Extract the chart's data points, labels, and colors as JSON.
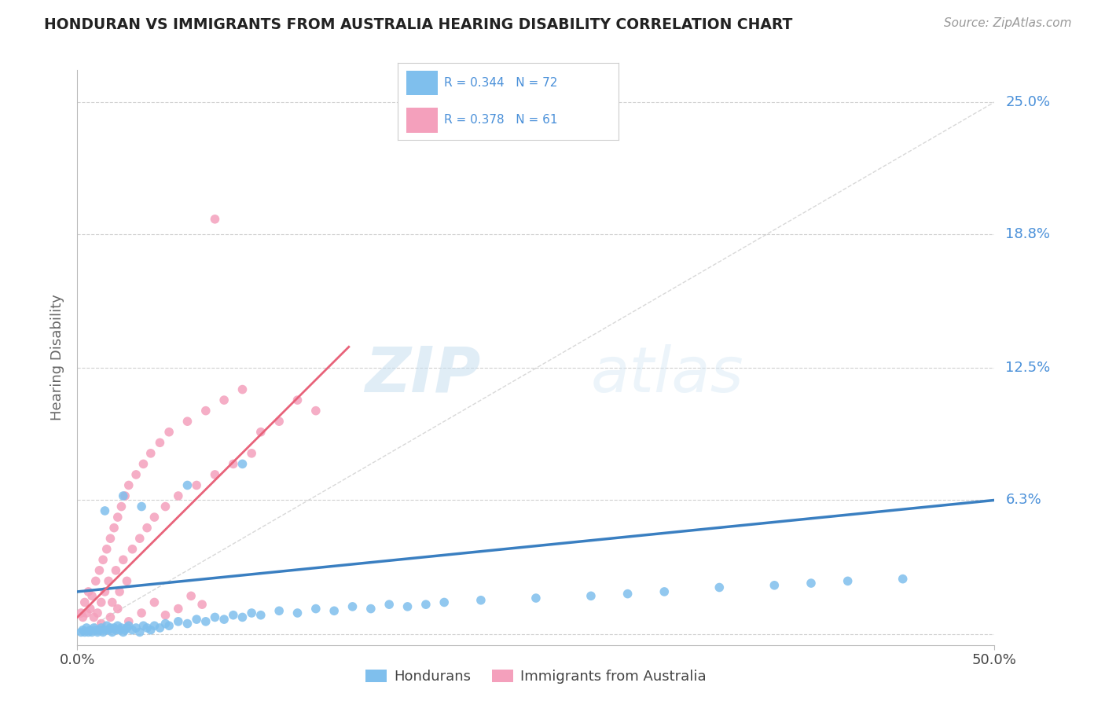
{
  "title": "HONDURAN VS IMMIGRANTS FROM AUSTRALIA HEARING DISABILITY CORRELATION CHART",
  "source": "Source: ZipAtlas.com",
  "ylabel": "Hearing Disability",
  "xlim": [
    0.0,
    0.5
  ],
  "ylim": [
    -0.005,
    0.265
  ],
  "ytick_labels": [
    "25.0%",
    "18.8%",
    "12.5%",
    "6.3%"
  ],
  "ytick_values": [
    0.25,
    0.188,
    0.125,
    0.063
  ],
  "blue_color": "#7fbfed",
  "pink_color": "#f4a0bc",
  "blue_line_color": "#3a7fc1",
  "pink_line_color": "#e8637a",
  "diag_color": "#c8c8c8",
  "grid_color": "#d0d0d0",
  "background_color": "#ffffff",
  "title_color": "#222222",
  "axis_label_color": "#666666",
  "right_label_color": "#4a90d9",
  "source_color": "#999999",
  "watermark_zip": "ZIP",
  "watermark_atlas": "atlas",
  "blue_scatter_x": [
    0.002,
    0.003,
    0.004,
    0.005,
    0.006,
    0.007,
    0.008,
    0.009,
    0.01,
    0.011,
    0.012,
    0.013,
    0.014,
    0.015,
    0.016,
    0.017,
    0.018,
    0.019,
    0.02,
    0.021,
    0.022,
    0.023,
    0.024,
    0.025,
    0.026,
    0.027,
    0.028,
    0.03,
    0.032,
    0.034,
    0.036,
    0.038,
    0.04,
    0.042,
    0.045,
    0.048,
    0.05,
    0.055,
    0.06,
    0.065,
    0.07,
    0.075,
    0.08,
    0.085,
    0.09,
    0.095,
    0.1,
    0.11,
    0.12,
    0.13,
    0.14,
    0.15,
    0.16,
    0.17,
    0.18,
    0.19,
    0.2,
    0.22,
    0.25,
    0.28,
    0.3,
    0.32,
    0.35,
    0.38,
    0.4,
    0.42,
    0.45,
    0.015,
    0.025,
    0.035,
    0.06,
    0.09
  ],
  "blue_scatter_y": [
    0.001,
    0.002,
    0.001,
    0.003,
    0.001,
    0.002,
    0.001,
    0.003,
    0.002,
    0.001,
    0.002,
    0.003,
    0.001,
    0.002,
    0.004,
    0.002,
    0.003,
    0.001,
    0.003,
    0.002,
    0.004,
    0.002,
    0.003,
    0.001,
    0.002,
    0.003,
    0.004,
    0.002,
    0.003,
    0.001,
    0.004,
    0.003,
    0.002,
    0.004,
    0.003,
    0.005,
    0.004,
    0.006,
    0.005,
    0.007,
    0.006,
    0.008,
    0.007,
    0.009,
    0.008,
    0.01,
    0.009,
    0.011,
    0.01,
    0.012,
    0.011,
    0.013,
    0.012,
    0.014,
    0.013,
    0.014,
    0.015,
    0.016,
    0.017,
    0.018,
    0.019,
    0.02,
    0.022,
    0.023,
    0.024,
    0.025,
    0.026,
    0.058,
    0.065,
    0.06,
    0.07,
    0.08
  ],
  "pink_scatter_x": [
    0.002,
    0.003,
    0.004,
    0.005,
    0.006,
    0.007,
    0.008,
    0.009,
    0.01,
    0.011,
    0.012,
    0.013,
    0.014,
    0.015,
    0.016,
    0.017,
    0.018,
    0.019,
    0.02,
    0.021,
    0.022,
    0.023,
    0.024,
    0.025,
    0.026,
    0.027,
    0.028,
    0.03,
    0.032,
    0.034,
    0.036,
    0.038,
    0.04,
    0.042,
    0.045,
    0.048,
    0.05,
    0.055,
    0.06,
    0.065,
    0.07,
    0.075,
    0.08,
    0.085,
    0.09,
    0.095,
    0.1,
    0.11,
    0.12,
    0.13,
    0.013,
    0.018,
    0.022,
    0.028,
    0.035,
    0.042,
    0.048,
    0.055,
    0.062,
    0.068,
    0.075
  ],
  "pink_scatter_y": [
    0.01,
    0.008,
    0.015,
    0.01,
    0.02,
    0.012,
    0.018,
    0.008,
    0.025,
    0.01,
    0.03,
    0.015,
    0.035,
    0.02,
    0.04,
    0.025,
    0.045,
    0.015,
    0.05,
    0.03,
    0.055,
    0.02,
    0.06,
    0.035,
    0.065,
    0.025,
    0.07,
    0.04,
    0.075,
    0.045,
    0.08,
    0.05,
    0.085,
    0.055,
    0.09,
    0.06,
    0.095,
    0.065,
    0.1,
    0.07,
    0.105,
    0.075,
    0.11,
    0.08,
    0.115,
    0.085,
    0.095,
    0.1,
    0.11,
    0.105,
    0.005,
    0.008,
    0.012,
    0.006,
    0.01,
    0.015,
    0.009,
    0.012,
    0.018,
    0.014,
    0.195
  ],
  "blue_line": [
    [
      0.0,
      0.5
    ],
    [
      0.02,
      0.063
    ]
  ],
  "pink_line": [
    [
      0.0,
      0.148
    ],
    [
      0.008,
      0.135
    ]
  ],
  "diag_line": [
    [
      0.0,
      0.5
    ],
    [
      0.0,
      0.25
    ]
  ]
}
